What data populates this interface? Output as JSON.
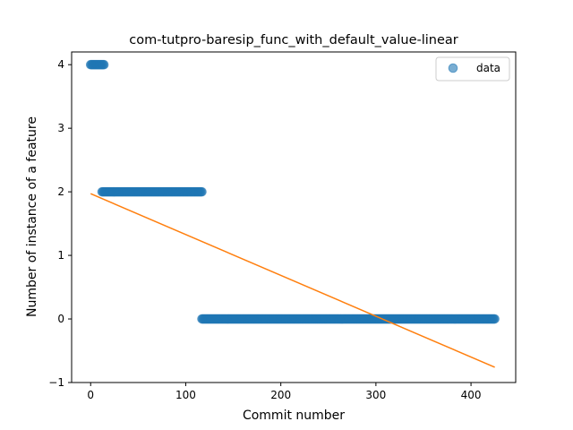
{
  "chart_data": {
    "type": "scatter",
    "title": "com-tutpro-baresip_func_with_default_value-linear",
    "xlabel": "Commit number",
    "ylabel": "Number of instance of a feature",
    "xlim": [
      -20,
      447
    ],
    "ylim": [
      -1,
      4.2
    ],
    "xticks": [
      0,
      100,
      200,
      300,
      400
    ],
    "yticks": [
      -1,
      0,
      1,
      2,
      3,
      4
    ],
    "xtick_labels": [
      "0",
      "100",
      "200",
      "300",
      "400"
    ],
    "ytick_labels": [
      "−1",
      "0",
      "1",
      "2",
      "3",
      "4"
    ],
    "legend": {
      "placement": "top-right",
      "entries": [
        "data"
      ]
    },
    "grid": false,
    "series": [
      {
        "name": "data",
        "kind": "scatter",
        "color": "#1f77b4",
        "segments": [
          {
            "x_start": 0,
            "x_end": 14,
            "y": 4
          },
          {
            "x_start": 12,
            "x_end": 117,
            "y": 2
          },
          {
            "x_start": 117,
            "x_end": 425,
            "y": 0
          }
        ]
      },
      {
        "name": "",
        "kind": "line",
        "color": "#ff7f0e",
        "points": [
          [
            0,
            1.97
          ],
          [
            425,
            -0.76
          ]
        ]
      }
    ]
  }
}
